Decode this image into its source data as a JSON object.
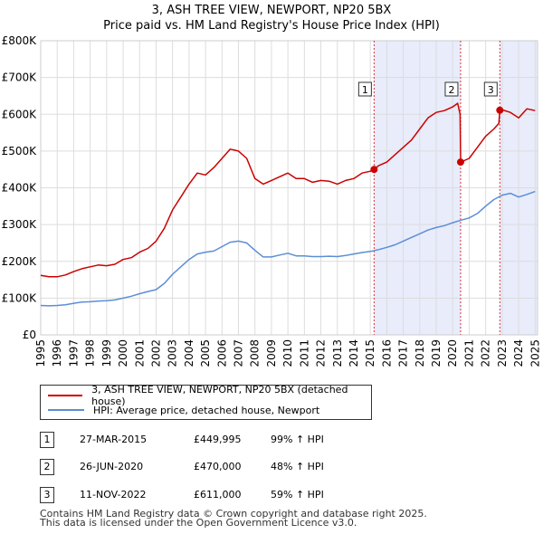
{
  "chart_data": {
    "type": "line",
    "title": "3, ASH TREE VIEW, NEWPORT, NP20 5BX",
    "subtitle": "Price paid vs. HM Land Registry's House Price Index (HPI)",
    "xlim": [
      1995,
      2025.15
    ],
    "ylim": [
      0,
      800000
    ],
    "x_ticks": [
      "1995",
      "1996",
      "1997",
      "1998",
      "1999",
      "2000",
      "2001",
      "2002",
      "2003",
      "2004",
      "2005",
      "2006",
      "2007",
      "2008",
      "2009",
      "2010",
      "2011",
      "2012",
      "2013",
      "2014",
      "2015",
      "2016",
      "2017",
      "2018",
      "2019",
      "2020",
      "2021",
      "2022",
      "2023",
      "2024",
      "2025"
    ],
    "y_ticks": [
      {
        "value": 0,
        "label": "£0"
      },
      {
        "value": 100000,
        "label": "£100K"
      },
      {
        "value": 200000,
        "label": "£200K"
      },
      {
        "value": 300000,
        "label": "£300K"
      },
      {
        "value": 400000,
        "label": "£400K"
      },
      {
        "value": 500000,
        "label": "£500K"
      },
      {
        "value": 600000,
        "label": "£600K"
      },
      {
        "value": 700000,
        "label": "£700K"
      },
      {
        "value": 800000,
        "label": "£800K"
      }
    ],
    "series": [
      {
        "name": "3, ASH TREE VIEW, NEWPORT, NP20 5BX (detached house)",
        "color": "#cc0000",
        "x": [
          1995.0,
          1995.5,
          1996.0,
          1996.5,
          1997.0,
          1997.5,
          1998.0,
          1998.5,
          1999.0,
          1999.5,
          2000.0,
          2000.5,
          2001.0,
          2001.5,
          2002.0,
          2002.5,
          2003.0,
          2003.5,
          2004.0,
          2004.5,
          2005.0,
          2005.5,
          2006.0,
          2006.5,
          2007.0,
          2007.5,
          2008.0,
          2008.5,
          2009.0,
          2009.5,
          2010.0,
          2010.5,
          2011.0,
          2011.5,
          2012.0,
          2012.5,
          2013.0,
          2013.5,
          2014.0,
          2014.5,
          2015.0,
          2015.23,
          2015.5,
          2016.0,
          2016.5,
          2017.0,
          2017.5,
          2018.0,
          2018.5,
          2019.0,
          2019.5,
          2020.0,
          2020.3,
          2020.45,
          2020.48,
          2020.5,
          2021.0,
          2021.5,
          2022.0,
          2022.5,
          2022.8,
          2022.86,
          2023.0,
          2023.5,
          2024.0,
          2024.5,
          2025.0
        ],
        "values": [
          162000,
          158000,
          158000,
          163000,
          172000,
          180000,
          185000,
          190000,
          188000,
          192000,
          205000,
          210000,
          225000,
          235000,
          255000,
          290000,
          340000,
          375000,
          410000,
          440000,
          435000,
          455000,
          480000,
          505000,
          500000,
          480000,
          425000,
          410000,
          420000,
          430000,
          440000,
          425000,
          425000,
          415000,
          420000,
          418000,
          410000,
          420000,
          425000,
          440000,
          445000,
          449995,
          460000,
          470000,
          490000,
          510000,
          530000,
          560000,
          590000,
          605000,
          610000,
          620000,
          630000,
          600000,
          470000,
          470000,
          480000,
          510000,
          540000,
          560000,
          575000,
          611000,
          612000,
          605000,
          590000,
          615000,
          610000
        ]
      },
      {
        "name": "HPI: Average price, detached house, Newport",
        "color": "#5b8ed6",
        "x": [
          1995.0,
          1995.5,
          1996.0,
          1996.5,
          1997.0,
          1997.5,
          1998.0,
          1998.5,
          1999.0,
          1999.5,
          2000.0,
          2000.5,
          2001.0,
          2001.5,
          2002.0,
          2002.5,
          2003.0,
          2003.5,
          2004.0,
          2004.5,
          2005.0,
          2005.5,
          2006.0,
          2006.5,
          2007.0,
          2007.5,
          2008.0,
          2008.5,
          2009.0,
          2009.5,
          2010.0,
          2010.5,
          2011.0,
          2011.5,
          2012.0,
          2012.5,
          2013.0,
          2013.5,
          2014.0,
          2014.5,
          2015.0,
          2015.5,
          2016.0,
          2016.5,
          2017.0,
          2017.5,
          2018.0,
          2018.5,
          2019.0,
          2019.5,
          2020.0,
          2020.5,
          2021.0,
          2021.5,
          2022.0,
          2022.5,
          2023.0,
          2023.5,
          2024.0,
          2024.5,
          2025.0
        ],
        "values": [
          80000,
          79000,
          80000,
          82000,
          86000,
          89000,
          90000,
          92000,
          93000,
          95000,
          100000,
          105000,
          112000,
          118000,
          123000,
          140000,
          165000,
          185000,
          205000,
          220000,
          225000,
          228000,
          240000,
          252000,
          255000,
          250000,
          230000,
          212000,
          212000,
          217000,
          222000,
          215000,
          215000,
          213000,
          213000,
          214000,
          213000,
          216000,
          220000,
          224000,
          227000,
          232000,
          238000,
          245000,
          255000,
          265000,
          275000,
          285000,
          292000,
          297000,
          305000,
          312000,
          318000,
          330000,
          350000,
          368000,
          380000,
          385000,
          375000,
          382000,
          390000
        ]
      }
    ],
    "annotations": [
      {
        "label": "1",
        "x": 2015.23,
        "y": 449995
      },
      {
        "label": "2",
        "x": 2020.48,
        "y": 470000
      },
      {
        "label": "3",
        "x": 2022.86,
        "y": 611000
      }
    ],
    "shaded_regions": [
      [
        2015.23,
        2020.48
      ],
      [
        2022.86,
        2025.15
      ]
    ]
  },
  "legend": {
    "red_label": "3, ASH TREE VIEW, NEWPORT, NP20 5BX (detached house)",
    "blue_label": "HPI: Average price, detached house, Newport",
    "red_color": "#cc0000",
    "blue_color": "#5b8ed6"
  },
  "transactions": [
    {
      "badge": "1",
      "date": "27-MAR-2015",
      "price": "£449,995",
      "hpi": "99% ↑ HPI"
    },
    {
      "badge": "2",
      "date": "26-JUN-2020",
      "price": "£470,000",
      "hpi": "48% ↑ HPI"
    },
    {
      "badge": "3",
      "date": "11-NOV-2022",
      "price": "£611,000",
      "hpi": "59% ↑ HPI"
    }
  ],
  "footer": {
    "line1": "Contains HM Land Registry data © Crown copyright and database right 2025.",
    "line2": "This data is licensed under the Open Government Licence v3.0."
  }
}
